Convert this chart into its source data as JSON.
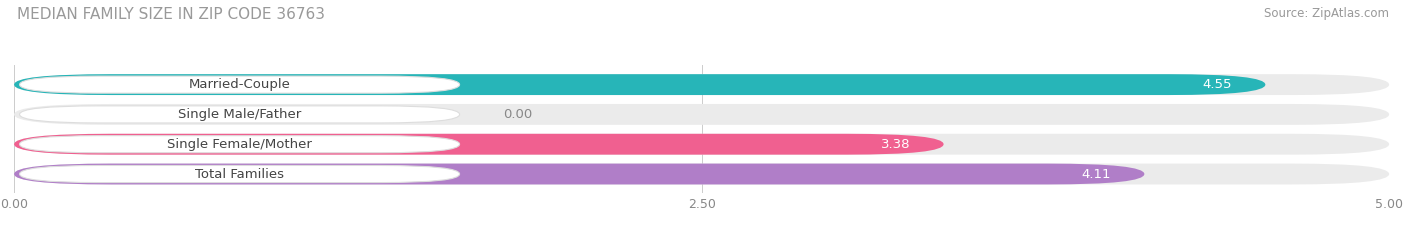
{
  "title": "MEDIAN FAMILY SIZE IN ZIP CODE 36763",
  "source": "Source: ZipAtlas.com",
  "categories": [
    "Married-Couple",
    "Single Male/Father",
    "Single Female/Mother",
    "Total Families"
  ],
  "values": [
    4.55,
    0.0,
    3.38,
    4.11
  ],
  "bar_colors": [
    "#27b5b8",
    "#a0b4e8",
    "#f06090",
    "#b07ec8"
  ],
  "bar_bg_color": "#ebebeb",
  "xlim": [
    0,
    5.0
  ],
  "xticks": [
    0.0,
    2.5,
    5.0
  ],
  "xtick_labels": [
    "0.00",
    "2.50",
    "5.00"
  ],
  "title_color": "#999999",
  "source_color": "#999999",
  "background_color": "#ffffff",
  "bar_height": 0.7,
  "title_fontsize": 11,
  "label_fontsize": 9.5,
  "value_fontsize": 9.5,
  "tick_fontsize": 9
}
